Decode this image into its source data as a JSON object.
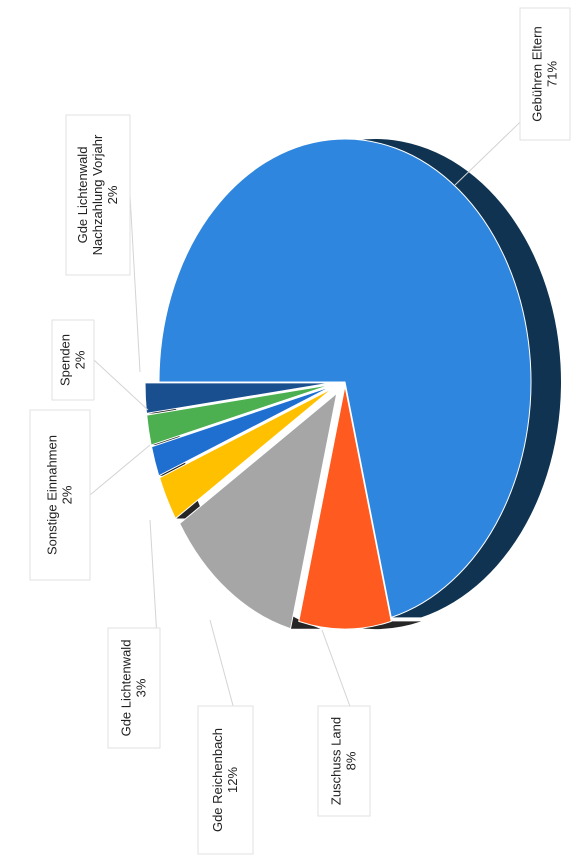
{
  "chart_data": {
    "type": "pie",
    "style": "3d exploded pie, rotated 90 degrees",
    "slices": [
      {
        "label": "Gebühren Eltern",
        "value": 71,
        "display": "71%",
        "color": "#2e86de",
        "side_color": "#0f3351"
      },
      {
        "label": "Zuschuss Land",
        "value": 8,
        "display": "8%",
        "color": "#ff5a1f",
        "side_color": "#262626"
      },
      {
        "label": "Gde Reichenbach",
        "value": 12,
        "display": "12%",
        "color": "#a6a6a6",
        "side_color": "#262626"
      },
      {
        "label": "Gde Lichtenwald",
        "value": 3,
        "display": "3%",
        "color": "#ffc000",
        "side_color": "#262626"
      },
      {
        "label": "Sonstige Einnahmen",
        "value": 2,
        "display": "2%",
        "color": "#1f6fd1",
        "side_color": "#222222"
      },
      {
        "label": "Spenden",
        "value": 2,
        "display": "2%",
        "color": "#4caf50",
        "side_color": "#222222"
      },
      {
        "label": "Gde Lichtenwald Nachzahlung Vorjahr",
        "value": 2,
        "display": "2%",
        "color": "#1a4f8f",
        "side_color": "#1a1a1a"
      }
    ],
    "legend": "none (data labels with leader lines)",
    "title": ""
  }
}
